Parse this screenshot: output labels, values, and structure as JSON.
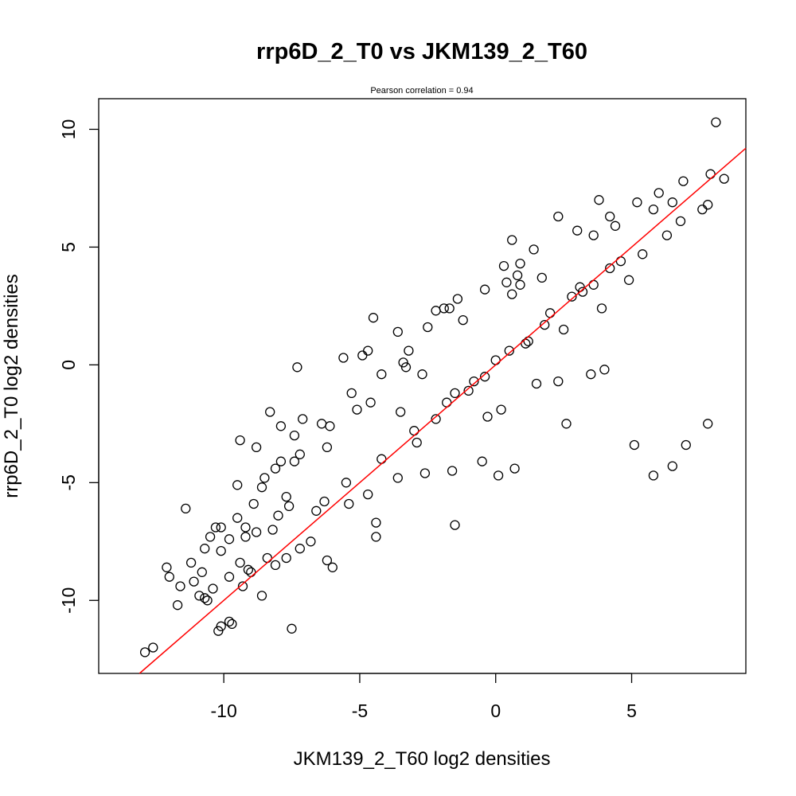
{
  "chart_data": {
    "type": "scatter",
    "title": "rrp6D_2_T0 vs JKM139_2_T60",
    "subtitle": "Pearson correlation =  0.94",
    "xlabel": "JKM139_2_T60 log2 densities",
    "ylabel": "rrp6D_2_T0 log2 densities",
    "xlim": [
      -14.6,
      9.2
    ],
    "ylim": [
      -13.1,
      11.3
    ],
    "x_ticks": [
      -10,
      -5,
      0,
      5
    ],
    "x_tick_labels": [
      "-10",
      "-5",
      "0",
      "5"
    ],
    "y_ticks": [
      -10,
      -5,
      0,
      5,
      10
    ],
    "y_tick_labels": [
      "-10",
      "-5",
      "0",
      "5",
      "10"
    ],
    "grid": false,
    "legend": "none",
    "colors": {
      "points": "#000000",
      "fit_line": "#ff0000"
    },
    "fit_line": {
      "slope": 1.0,
      "intercept": 0.0
    },
    "points": [
      [
        8.1,
        10.3
      ],
      [
        7.9,
        8.1
      ],
      [
        8.4,
        7.9
      ],
      [
        6.9,
        7.8
      ],
      [
        6.0,
        7.3
      ],
      [
        5.8,
        6.6
      ],
      [
        6.5,
        6.9
      ],
      [
        3.8,
        7.0
      ],
      [
        2.3,
        6.3
      ],
      [
        7.6,
        6.6
      ],
      [
        7.8,
        6.8
      ],
      [
        6.8,
        6.1
      ],
      [
        6.3,
        5.5
      ],
      [
        5.2,
        6.9
      ],
      [
        4.2,
        6.3
      ],
      [
        4.4,
        5.9
      ],
      [
        3.6,
        5.5
      ],
      [
        3.0,
        5.7
      ],
      [
        0.6,
        5.3
      ],
      [
        1.4,
        4.9
      ],
      [
        0.9,
        4.3
      ],
      [
        0.3,
        4.2
      ],
      [
        0.8,
        3.8
      ],
      [
        0.4,
        3.5
      ],
      [
        0.9,
        3.4
      ],
      [
        0.6,
        3.0
      ],
      [
        1.7,
        3.7
      ],
      [
        -0.4,
        3.2
      ],
      [
        -1.4,
        2.8
      ],
      [
        -1.9,
        2.4
      ],
      [
        -2.2,
        2.3
      ],
      [
        -1.7,
        2.4
      ],
      [
        -4.5,
        2.0
      ],
      [
        -3.6,
        1.4
      ],
      [
        -2.5,
        1.6
      ],
      [
        -1.2,
        1.9
      ],
      [
        -3.2,
        0.6
      ],
      [
        -4.7,
        0.6
      ],
      [
        -5.6,
        0.3
      ],
      [
        -4.9,
        0.4
      ],
      [
        -3.4,
        0.1
      ],
      [
        -7.3,
        -0.1
      ],
      [
        -4.2,
        -0.4
      ],
      [
        -3.3,
        -0.1
      ],
      [
        -5.3,
        -1.2
      ],
      [
        -4.6,
        -1.6
      ],
      [
        -5.1,
        -1.9
      ],
      [
        -8.3,
        -2.0
      ],
      [
        -7.1,
        -2.3
      ],
      [
        -7.9,
        -2.6
      ],
      [
        -6.4,
        -2.5
      ],
      [
        -6.1,
        -2.6
      ],
      [
        -7.4,
        -3.0
      ],
      [
        -9.4,
        -3.2
      ],
      [
        -8.8,
        -3.5
      ],
      [
        -6.2,
        -3.5
      ],
      [
        -7.2,
        -3.8
      ],
      [
        -7.4,
        -4.1
      ],
      [
        -7.9,
        -4.1
      ],
      [
        -8.1,
        -4.4
      ],
      [
        -8.5,
        -4.8
      ],
      [
        -9.5,
        -5.1
      ],
      [
        -8.6,
        -5.2
      ],
      [
        -7.7,
        -5.6
      ],
      [
        -8.9,
        -5.9
      ],
      [
        -7.6,
        -6.0
      ],
      [
        -8.0,
        -6.4
      ],
      [
        -6.6,
        -6.2
      ],
      [
        -9.5,
        -6.5
      ],
      [
        -9.2,
        -6.9
      ],
      [
        -8.8,
        -7.1
      ],
      [
        -10.1,
        -6.9
      ],
      [
        -10.5,
        -7.3
      ],
      [
        -9.8,
        -7.4
      ],
      [
        -10.1,
        -7.9
      ],
      [
        -10.7,
        -7.8
      ],
      [
        -9.4,
        -8.4
      ],
      [
        -9.0,
        -8.8
      ],
      [
        -9.1,
        -8.7
      ],
      [
        -8.4,
        -8.2
      ],
      [
        -7.7,
        -8.2
      ],
      [
        -8.1,
        -8.5
      ],
      [
        -7.2,
        -7.8
      ],
      [
        -6.8,
        -7.5
      ],
      [
        -6.2,
        -8.3
      ],
      [
        -6.0,
        -8.6
      ],
      [
        -10.8,
        -8.8
      ],
      [
        -9.8,
        -9.0
      ],
      [
        -9.3,
        -9.4
      ],
      [
        -8.6,
        -9.8
      ],
      [
        -10.4,
        -9.5
      ],
      [
        -10.9,
        -9.8
      ],
      [
        -11.6,
        -9.4
      ],
      [
        -12.0,
        -9.0
      ],
      [
        -12.1,
        -8.6
      ],
      [
        -11.2,
        -8.4
      ],
      [
        -11.1,
        -9.2
      ],
      [
        -11.7,
        -10.2
      ],
      [
        -10.6,
        -10.0
      ],
      [
        -10.7,
        -9.9
      ],
      [
        -9.8,
        -10.9
      ],
      [
        -9.7,
        -11.0
      ],
      [
        -10.2,
        -11.3
      ],
      [
        -10.1,
        -11.1
      ],
      [
        -7.5,
        -11.2
      ],
      [
        -12.9,
        -12.2
      ],
      [
        -12.6,
        -12.0
      ],
      [
        -11.4,
        -6.1
      ],
      [
        -10.3,
        -6.9
      ],
      [
        -9.2,
        -7.3
      ],
      [
        -8.2,
        -7.0
      ],
      [
        -4.4,
        -6.7
      ],
      [
        -4.4,
        -7.3
      ],
      [
        -1.5,
        -6.8
      ],
      [
        -5.4,
        -5.9
      ],
      [
        -4.7,
        -5.5
      ],
      [
        -3.6,
        -4.8
      ],
      [
        -2.6,
        -4.6
      ],
      [
        -1.6,
        -4.5
      ],
      [
        -0.5,
        -4.1
      ],
      [
        0.1,
        -4.7
      ],
      [
        0.7,
        -4.4
      ],
      [
        0.2,
        -1.9
      ],
      [
        1.5,
        -0.8
      ],
      [
        2.3,
        -0.7
      ],
      [
        4.0,
        -0.2
      ],
      [
        3.5,
        -0.4
      ],
      [
        2.6,
        -2.5
      ],
      [
        5.1,
        -3.4
      ],
      [
        7.8,
        -2.5
      ],
      [
        7.0,
        -3.4
      ],
      [
        6.5,
        -4.3
      ],
      [
        5.8,
        -4.7
      ],
      [
        -2.7,
        -0.4
      ],
      [
        -1.8,
        -1.6
      ],
      [
        -0.3,
        -2.2
      ],
      [
        1.2,
        1.0
      ],
      [
        2.5,
        1.5
      ],
      [
        3.2,
        3.1
      ],
      [
        4.6,
        4.4
      ],
      [
        5.4,
        4.7
      ],
      [
        4.9,
        3.6
      ],
      [
        3.9,
        2.4
      ],
      [
        -3.5,
        -2.0
      ],
      [
        -2.9,
        -3.3
      ],
      [
        -4.2,
        -4.0
      ],
      [
        -5.5,
        -5.0
      ],
      [
        -6.3,
        -5.8
      ],
      [
        -0.8,
        -0.7
      ],
      [
        0.5,
        0.6
      ],
      [
        1.8,
        1.7
      ],
      [
        -1.5,
        -1.2
      ],
      [
        -2.2,
        -2.3
      ],
      [
        2.8,
        2.9
      ],
      [
        3.6,
        3.4
      ],
      [
        4.2,
        4.1
      ],
      [
        -3.0,
        -2.8
      ],
      [
        0.0,
        0.2
      ],
      [
        1.1,
        0.9
      ],
      [
        -0.4,
        -0.5
      ],
      [
        2.0,
        2.2
      ],
      [
        -1.0,
        -1.1
      ],
      [
        3.1,
        3.3
      ]
    ]
  }
}
